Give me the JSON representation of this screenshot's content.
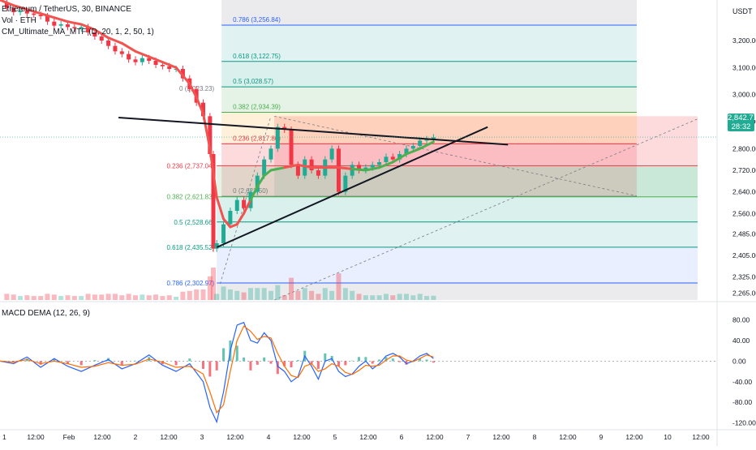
{
  "header": {
    "symbol_title": "Ethereum / TetherUS, 30, BINANCE",
    "volume_label": "Vol · ETH",
    "ma_label": "CM_Ultimate_MA_MTF (D, 20, 1, 2, 50, 1)",
    "currency": "USDT"
  },
  "last_price": {
    "value": "2,842.71",
    "countdown": "28:32"
  },
  "colors": {
    "up": "#22ab94",
    "down": "#f23645",
    "ma_green": "#4caf50",
    "ma_red": "#f05350",
    "macd_line": "#2962ff",
    "signal_line": "#ff6d00",
    "trend_line": "#131722",
    "fib_low": "#d1d4dc"
  },
  "chart_data": [
    {
      "type": "line",
      "title": "Ethereum / TetherUS, 30, BINANCE",
      "y_unit": "USDT",
      "y_ticks": [
        "3,200.00",
        "3,100.00",
        "3,000.00",
        "2,900.00",
        "2,800.00",
        "2,720.00",
        "2,640.00",
        "2,560.00",
        "2,485.00",
        "2,405.00",
        "2,325.00",
        "2,265.00"
      ],
      "x_ticks": [
        "1",
        "12:00",
        "Feb",
        "12:00",
        "2",
        "12:00",
        "3",
        "12:00",
        "4",
        "12:00",
        "5",
        "12:00",
        "6",
        "12:00",
        "7",
        "12:00",
        "8",
        "12:00",
        "9",
        "12:00",
        "10",
        "12:00"
      ],
      "ylim": [
        2240,
        3350
      ],
      "x_range_days": [
        0.0,
        10.5
      ],
      "price_close": {
        "x": [
          0.0,
          0.1,
          0.2,
          0.3,
          0.4,
          0.5,
          0.6,
          0.7,
          0.8,
          0.9,
          1.0,
          1.1,
          1.2,
          1.3,
          1.4,
          1.5,
          1.6,
          1.7,
          1.8,
          1.9,
          2.0,
          2.1,
          2.2,
          2.3,
          2.4,
          2.5,
          2.6,
          2.7,
          2.8,
          2.9,
          3.0,
          3.1,
          3.15,
          3.2,
          3.3,
          3.4,
          3.5,
          3.6,
          3.7,
          3.8,
          3.9,
          4.0,
          4.1,
          4.2,
          4.3,
          4.4,
          4.5,
          4.6,
          4.7,
          4.8,
          4.9,
          5.0,
          5.1,
          5.2,
          5.3,
          5.4,
          5.5,
          5.6,
          5.7,
          5.8,
          5.9,
          6.0,
          6.1,
          6.2,
          6.3,
          6.4
        ],
        "y": [
          3340,
          3320,
          3305,
          3310,
          3300,
          3295,
          3290,
          3270,
          3255,
          3260,
          3250,
          3245,
          3250,
          3230,
          3215,
          3200,
          3180,
          3160,
          3150,
          3130,
          3120,
          3135,
          3125,
          3110,
          3105,
          3095,
          3095,
          3060,
          3020,
          2970,
          2920,
          2780,
          2430,
          2450,
          2520,
          2570,
          2610,
          2580,
          2640,
          2700,
          2760,
          2800,
          2880,
          2870,
          2740,
          2700,
          2760,
          2720,
          2700,
          2760,
          2800,
          2640,
          2700,
          2740,
          2720,
          2730,
          2740,
          2750,
          2770,
          2760,
          2780,
          2800,
          2810,
          2830,
          2835,
          2842
        ]
      },
      "ma_line": {
        "x": [
          0.0,
          0.2,
          0.4,
          0.6,
          0.8,
          1.0,
          1.2,
          1.4,
          1.6,
          1.8,
          2.0,
          2.2,
          2.4,
          2.6,
          2.8,
          2.9,
          3.0,
          3.1,
          3.2,
          3.3,
          3.4,
          3.5,
          3.6,
          3.7,
          3.8,
          3.9,
          4.0,
          4.2,
          4.4,
          4.6,
          4.8,
          5.0,
          5.2,
          5.4,
          5.6,
          5.8,
          6.0,
          6.2,
          6.4
        ],
        "y": [
          3350,
          3330,
          3315,
          3300,
          3285,
          3270,
          3260,
          3240,
          3210,
          3190,
          3160,
          3140,
          3120,
          3100,
          3040,
          2990,
          2930,
          2800,
          2620,
          2540,
          2510,
          2520,
          2560,
          2610,
          2660,
          2700,
          2720,
          2730,
          2740,
          2730,
          2730,
          2730,
          2725,
          2720,
          2730,
          2750,
          2780,
          2800,
          2825
        ],
        "colors_by_segment": [
          "red",
          "red",
          "red",
          "red",
          "red",
          "red",
          "red",
          "red",
          "red",
          "red",
          "red",
          "red",
          "red",
          "red",
          "red",
          "red",
          "red",
          "red",
          "red",
          "red",
          "red",
          "red",
          "red",
          "green",
          "green",
          "green",
          "green",
          "red",
          "red",
          "red",
          "red",
          "red",
          "green",
          "green",
          "green",
          "green",
          "green",
          "green"
        ]
      },
      "fib_upper": {
        "origin_day": 4.05,
        "range": [
          2623.5,
          2934.39
        ],
        "levels": [
          {
            "label": "0 (2,623.50)",
            "price": 2623.5
          },
          {
            "label": "0.236 (2,817.86)",
            "price": 2817.86
          },
          {
            "label": "0.382 (2,934.39)",
            "price": 2934.39
          },
          {
            "label": "0.5 (3,028.57)",
            "price": 3028.57
          },
          {
            "label": "0.618 (3,122.75)",
            "price": 3122.75
          },
          {
            "label": "0.786 (3,256.84)",
            "price": 3256.84
          }
        ]
      },
      "fib_lower": {
        "origin_day": 3.2,
        "levels": [
          {
            "label": "0.236 (2,737.04)",
            "price": 2737.04
          },
          {
            "label": "0.382 (2,621.83)",
            "price": 2621.83
          },
          {
            "label": "0.5 (2,528.66)",
            "price": 2528.66
          },
          {
            "label": "0.618 (2,435.52)",
            "price": 2435.52
          },
          {
            "label": "0.786 (2,302.97)",
            "price": 2302.97
          },
          {
            "label": "0 (3,023.23)",
            "price": 3023.23
          }
        ]
      },
      "triangle_upper": {
        "x": [
          1.75,
          7.5
        ],
        "y": [
          2915,
          2815
        ]
      },
      "triangle_lower": {
        "x": [
          3.2,
          7.2
        ],
        "y": [
          2435,
          2880
        ]
      },
      "position_box": {
        "x0": 4.05,
        "x1": 10.3,
        "top": 2920,
        "mid": 2740,
        "bottom": 2620,
        "target_low": 2620,
        "target_high": 2920
      }
    },
    {
      "type": "line",
      "title": "MACD DEMA (12, 26, 9)",
      "y_ticks": [
        "80.00",
        "40.00",
        "0.00",
        "-40.00",
        "-80.00",
        "-120.00"
      ],
      "ylim": [
        -130,
        95
      ],
      "x": [
        0.0,
        0.2,
        0.4,
        0.6,
        0.8,
        1.0,
        1.2,
        1.4,
        1.6,
        1.8,
        2.0,
        2.2,
        2.4,
        2.6,
        2.8,
        3.0,
        3.1,
        3.2,
        3.3,
        3.4,
        3.5,
        3.6,
        3.7,
        3.8,
        3.9,
        4.0,
        4.1,
        4.2,
        4.3,
        4.4,
        4.5,
        4.6,
        4.7,
        4.8,
        4.9,
        5.0,
        5.1,
        5.2,
        5.3,
        5.4,
        5.5,
        5.6,
        5.7,
        5.8,
        5.9,
        6.0,
        6.1,
        6.2,
        6.3,
        6.4
      ],
      "macd": [
        0,
        -5,
        8,
        -12,
        5,
        -10,
        -20,
        -8,
        3,
        -15,
        -5,
        12,
        -8,
        -20,
        -5,
        -40,
        -90,
        -118,
        -60,
        20,
        70,
        75,
        40,
        35,
        55,
        40,
        -10,
        -20,
        -40,
        -30,
        10,
        -10,
        -35,
        0,
        5,
        -20,
        -30,
        -25,
        -10,
        0,
        -15,
        -5,
        10,
        15,
        8,
        -5,
        0,
        10,
        15,
        5
      ],
      "signal": [
        0,
        -2,
        3,
        -5,
        0,
        -5,
        -12,
        -10,
        -3,
        -8,
        -6,
        4,
        -2,
        -12,
        -10,
        -25,
        -60,
        -100,
        -85,
        -20,
        40,
        68,
        58,
        42,
        48,
        45,
        15,
        -10,
        -28,
        -32,
        -10,
        -5,
        -20,
        -15,
        -5,
        -10,
        -22,
        -26,
        -18,
        -8,
        -10,
        -8,
        2,
        10,
        10,
        2,
        -1,
        5,
        12,
        8
      ]
    }
  ]
}
